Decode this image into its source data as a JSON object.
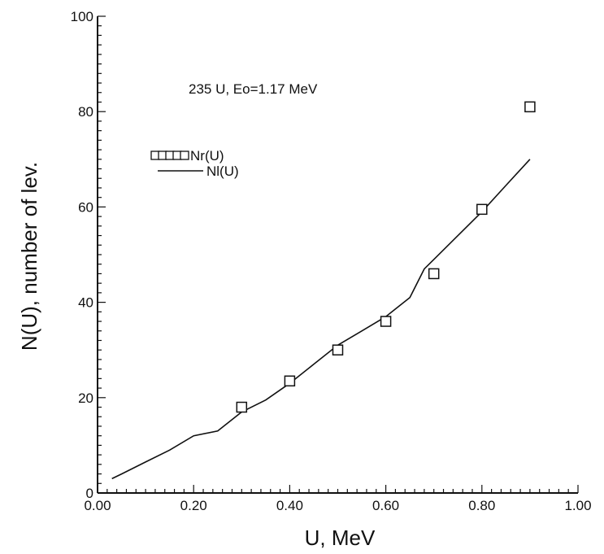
{
  "chart_data": {
    "type": "scatter",
    "title": "",
    "annotation": "235 U, Eo=1.17 MeV",
    "xlabel": "U,  MeV",
    "ylabel": "N(U),  number  of  lev.",
    "xlim": [
      0.0,
      1.0
    ],
    "ylim": [
      0,
      100
    ],
    "x_ticks": [
      "0.00",
      "0.20",
      "0.40",
      "0.60",
      "0.80",
      "1.00"
    ],
    "x_tick_values": [
      0.0,
      0.2,
      0.4,
      0.6,
      0.8,
      1.0
    ],
    "y_ticks": [
      "0",
      "20",
      "40",
      "60",
      "80",
      "100"
    ],
    "y_tick_values": [
      0,
      20,
      40,
      60,
      80,
      100
    ],
    "grid": false,
    "legend_position": "upper-left",
    "series": [
      {
        "name": "Nr(U)",
        "style": "markers",
        "marker": "open-square",
        "x": [
          0.3,
          0.4,
          0.5,
          0.6,
          0.7,
          0.8,
          0.9
        ],
        "y": [
          18,
          23.5,
          30,
          36,
          46,
          59.5,
          81
        ]
      },
      {
        "name": "Nl(U)",
        "style": "line",
        "x": [
          0.03,
          0.05,
          0.1,
          0.15,
          0.2,
          0.25,
          0.3,
          0.35,
          0.4,
          0.45,
          0.5,
          0.55,
          0.6,
          0.65,
          0.68,
          0.7,
          0.75,
          0.8,
          0.85,
          0.9
        ],
        "y": [
          3,
          4,
          6.5,
          9,
          12,
          13,
          17,
          19.5,
          23,
          27,
          31,
          34,
          37,
          41,
          47,
          49,
          54,
          59,
          64.5,
          70
        ]
      }
    ]
  }
}
